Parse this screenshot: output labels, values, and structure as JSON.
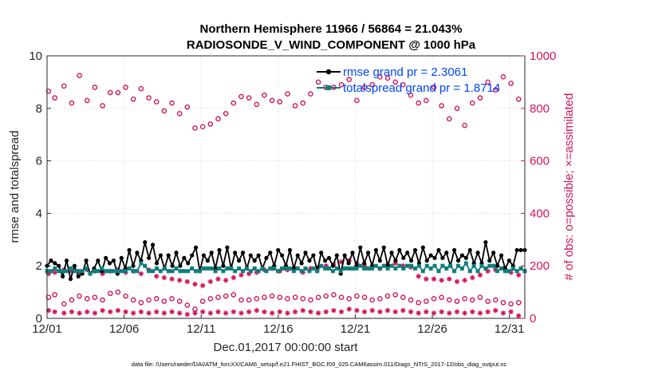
{
  "chart_data": {
    "type": "line",
    "title": "Northern Hemisphere 11966 / 56864 = 21.043%",
    "subtitle": "RADIOSONDE_V_WIND_COMPONENT @ 1000 hPa",
    "xlabel": "Dec.01,2017 00:00:00 start",
    "ylabel_left": "rmse and totalspread",
    "ylabel_right": "# of obs: o=possible; ×=assimilated",
    "footnote": "data file: /Users/raeder/DAI/ATM_forcXX/CAM6_setup/f.e21.FHIST_BGC.f09_025.CAM6assim.011/Diags_NTrS_2017-12/obs_diag_output.nc",
    "xlim": [
      0,
      31
    ],
    "x_ticks": [
      0,
      5,
      10,
      15,
      20,
      25,
      30
    ],
    "x_tick_labels": [
      "12/01",
      "12/06",
      "12/11",
      "12/16",
      "12/21",
      "12/26",
      "12/31"
    ],
    "ylim_left": [
      0,
      10
    ],
    "y_ticks_left": [
      0,
      2,
      4,
      6,
      8,
      10
    ],
    "y_tick_labels_left": [
      "0",
      "2",
      "4",
      "6",
      "8",
      "10"
    ],
    "ylim_right": [
      0,
      1000
    ],
    "y_ticks_right": [
      0,
      200,
      400,
      600,
      800,
      1000
    ],
    "y_tick_labels_right": [
      "0",
      "200",
      "400",
      "600",
      "800",
      "1000"
    ],
    "colors": {
      "rmse": "#000000",
      "totalspread": "#0e7d7d",
      "obs": "#d1145a",
      "legend_text": "#0044ff"
    },
    "legend": {
      "placement": "top-right",
      "entries": [
        "rmse grand pr = 2.3061",
        "totalspread grand pr = 1.8714"
      ]
    },
    "series": [
      {
        "name": "rmse",
        "axis": "left",
        "values": [
          2.0,
          2.2,
          2.1,
          2.0,
          1.6,
          2.2,
          1.5,
          2.0,
          1.6,
          1.7,
          2.2,
          1.7,
          1.9,
          2.2,
          1.8,
          2.3,
          2.1,
          2.2,
          1.7,
          2.3,
          1.9,
          2.6,
          2.0,
          2.5,
          2.2,
          2.9,
          2.3,
          2.8,
          2.1,
          2.4,
          1.9,
          2.4,
          2.0,
          2.5,
          2.0,
          2.3,
          2.1,
          2.4,
          2.7,
          1.8,
          2.4,
          2.2,
          2.5,
          1.9,
          2.6,
          2.0,
          2.7,
          1.9,
          2.5,
          2.2,
          2.5,
          1.9,
          2.4,
          2.2,
          2.4,
          1.9,
          2.3,
          2.5,
          2.0,
          2.6,
          2.4,
          2.0,
          2.6,
          1.9,
          2.4,
          2.1,
          2.5,
          2.2,
          2.4,
          1.8,
          2.5,
          2.2,
          2.3,
          2.0,
          2.4,
          1.7,
          2.4,
          2.1,
          2.5,
          2.0,
          2.7,
          2.1,
          2.5,
          2.0,
          2.6,
          2.2,
          2.7,
          2.0,
          2.5,
          2.2,
          2.6,
          2.3,
          2.5,
          2.2,
          2.6,
          2.1,
          2.7,
          2.2,
          2.4,
          2.3,
          2.6,
          2.3,
          2.5,
          2.0,
          2.6,
          2.2,
          2.4,
          2.3,
          2.6,
          2.1,
          2.5,
          2.1,
          2.9,
          2.2,
          2.5,
          2.0,
          2.4,
          1.9,
          2.2,
          2.0,
          2.6,
          2.6,
          2.6
        ]
      },
      {
        "name": "totalspread",
        "axis": "left",
        "values": [
          1.8,
          1.8,
          1.9,
          1.8,
          1.8,
          1.8,
          1.9,
          1.8,
          1.8,
          1.8,
          1.9,
          1.7,
          1.8,
          1.8,
          1.9,
          1.8,
          1.8,
          1.8,
          1.8,
          1.8,
          1.8,
          1.9,
          1.8,
          1.8,
          2.1,
          2.0,
          1.8,
          1.8,
          1.9,
          1.8,
          1.9,
          1.8,
          1.8,
          1.9,
          1.8,
          1.8,
          1.8,
          1.9,
          1.8,
          1.8,
          1.9,
          1.9,
          1.9,
          1.8,
          1.9,
          1.8,
          1.9,
          1.9,
          1.8,
          1.9,
          1.8,
          1.9,
          1.8,
          1.9,
          1.8,
          1.9,
          1.8,
          1.9,
          1.9,
          1.8,
          1.9,
          1.9,
          1.9,
          1.8,
          1.9,
          1.8,
          1.9,
          1.8,
          1.9,
          1.8,
          2.0,
          1.9,
          1.9,
          1.8,
          1.9,
          1.8,
          1.9,
          1.9,
          1.9,
          1.9,
          2.0,
          1.9,
          1.9,
          1.9,
          2.0,
          1.9,
          2.0,
          1.9,
          2.0,
          1.9,
          2.0,
          1.9,
          2.0,
          2.0,
          1.9,
          2.0,
          1.8,
          2.0,
          1.9,
          2.0,
          1.8,
          2.0,
          1.9,
          2.0,
          1.8,
          2.0,
          1.9,
          2.1,
          1.8,
          2.0,
          1.8,
          2.0,
          1.9,
          2.0,
          2.0,
          1.8,
          1.9,
          1.8,
          1.8,
          1.9,
          1.8,
          1.9,
          1.8
        ]
      },
      {
        "name": "possible_high",
        "axis": "right",
        "x": [
          0.1,
          0.5,
          1.1,
          1.6,
          2.1,
          2.6,
          3.1,
          3.6,
          4.1,
          4.6,
          5.1,
          5.6,
          6.1,
          6.6,
          7.1,
          7.6,
          8.1,
          8.6,
          9.1,
          9.6,
          10.1,
          10.6,
          11.1,
          11.6,
          12.1,
          12.6,
          13.1,
          13.6,
          14.1,
          14.6,
          15.1,
          15.6,
          16.1,
          16.6,
          17.1,
          17.6,
          18.1,
          18.6,
          19.1,
          19.6,
          20.1,
          20.6,
          21.1,
          21.6,
          22.1,
          22.6,
          23.1,
          23.6,
          24.1,
          24.6,
          25.1,
          25.6,
          26.1,
          26.6,
          27.1,
          27.6,
          28.1,
          28.6,
          29.1,
          29.6,
          30.1,
          30.6
        ],
        "values": [
          865,
          840,
          885,
          820,
          925,
          830,
          880,
          810,
          860,
          860,
          880,
          835,
          875,
          840,
          825,
          790,
          820,
          780,
          805,
          725,
          730,
          740,
          760,
          780,
          820,
          845,
          840,
          815,
          850,
          830,
          825,
          855,
          810,
          820,
          855,
          900,
          880,
          880,
          890,
          910,
          830,
          880,
          890,
          920,
          915,
          900,
          890,
          850,
          820,
          830,
          880,
          810,
          760,
          800,
          735,
          820,
          840,
          900,
          870,
          920,
          895,
          835
        ]
      },
      {
        "name": "possible_low",
        "axis": "right",
        "x": [
          0.1,
          0.5,
          1.1,
          1.6,
          2.1,
          2.6,
          3.1,
          3.6,
          4.1,
          4.6,
          5.1,
          5.6,
          6.1,
          6.6,
          7.1,
          7.6,
          8.1,
          8.6,
          9.1,
          9.6,
          10.1,
          10.6,
          11.1,
          11.6,
          12.1,
          12.6,
          13.1,
          13.6,
          14.1,
          14.6,
          15.1,
          15.6,
          16.1,
          16.6,
          17.1,
          17.6,
          18.1,
          18.6,
          19.1,
          19.6,
          20.1,
          20.6,
          21.1,
          21.6,
          22.1,
          22.6,
          23.1,
          23.6,
          24.1,
          24.6,
          25.1,
          25.6,
          26.1,
          26.6,
          27.1,
          27.6,
          28.1,
          28.6,
          29.1,
          29.6,
          30.1,
          30.6
        ],
        "values": [
          80,
          90,
          55,
          70,
          85,
          75,
          80,
          70,
          95,
          100,
          85,
          70,
          60,
          70,
          75,
          65,
          75,
          65,
          50,
          35,
          65,
          75,
          80,
          85,
          90,
          70,
          70,
          75,
          80,
          85,
          80,
          75,
          80,
          75,
          70,
          80,
          85,
          90,
          80,
          75,
          85,
          80,
          70,
          75,
          85,
          90,
          80,
          70,
          60,
          65,
          75,
          80,
          70,
          65,
          75,
          70,
          80,
          65,
          70,
          60,
          55,
          60
        ]
      },
      {
        "name": "assimilated_high",
        "axis": "right",
        "x": [
          0.1,
          0.5,
          1.1,
          1.6,
          2.1,
          2.6,
          3.1,
          3.6,
          4.1,
          4.6,
          5.1,
          5.6,
          6.1,
          6.6,
          7.1,
          7.6,
          8.1,
          8.6,
          9.1,
          9.6,
          10.1,
          10.6,
          11.1,
          11.6,
          12.1,
          12.6,
          13.1,
          13.6,
          14.1,
          14.6,
          15.1,
          15.6,
          16.1,
          16.6,
          17.1,
          17.6,
          18.1,
          18.6,
          19.1,
          19.6,
          20.1,
          20.6,
          21.1,
          21.6,
          22.1,
          22.6,
          23.1,
          23.6,
          24.1,
          24.6,
          25.1,
          25.6,
          26.1,
          26.6,
          27.1,
          27.6,
          28.1,
          28.6,
          29.1,
          29.6,
          30.1,
          30.6
        ],
        "values": [
          170,
          175,
          185,
          180,
          175,
          185,
          180,
          170,
          180,
          185,
          175,
          180,
          170,
          185,
          160,
          155,
          150,
          145,
          140,
          130,
          125,
          140,
          150,
          145,
          155,
          165,
          170,
          175,
          185,
          190,
          180,
          185,
          190,
          175,
          190,
          195,
          200,
          205,
          215,
          220,
          210,
          200,
          195,
          190,
          205,
          210,
          200,
          195,
          160,
          150,
          150,
          145,
          150,
          140,
          145,
          155,
          165,
          180,
          185,
          190,
          175,
          165
        ]
      },
      {
        "name": "assimilated_low",
        "axis": "right",
        "x": [
          0.1,
          0.5,
          1.1,
          1.6,
          2.1,
          2.6,
          3.1,
          3.6,
          4.1,
          4.6,
          5.1,
          5.6,
          6.1,
          6.6,
          7.1,
          7.6,
          8.1,
          8.6,
          9.1,
          9.6,
          10.1,
          10.6,
          11.1,
          11.6,
          12.1,
          12.6,
          13.1,
          13.6,
          14.1,
          14.6,
          15.1,
          15.6,
          16.1,
          16.6,
          17.1,
          17.6,
          18.1,
          18.6,
          19.1,
          19.6,
          20.1,
          20.6,
          21.1,
          21.6,
          22.1,
          22.6,
          23.1,
          23.6,
          24.1,
          24.6,
          25.1,
          25.6,
          26.1,
          26.6,
          27.1,
          27.6,
          28.1,
          28.6,
          29.1,
          29.6,
          30.1,
          30.6
        ],
        "values": [
          30,
          25,
          20,
          25,
          20,
          25,
          20,
          30,
          25,
          30,
          25,
          20,
          25,
          20,
          25,
          20,
          25,
          20,
          15,
          20,
          25,
          20,
          25,
          20,
          25,
          20,
          25,
          30,
          25,
          20,
          25,
          20,
          25,
          30,
          25,
          20,
          25,
          30,
          25,
          35,
          30,
          25,
          30,
          25,
          30,
          25,
          30,
          25,
          20,
          25,
          20,
          25,
          20,
          25,
          20,
          25,
          20,
          25,
          30,
          20,
          25,
          10
        ]
      }
    ]
  }
}
